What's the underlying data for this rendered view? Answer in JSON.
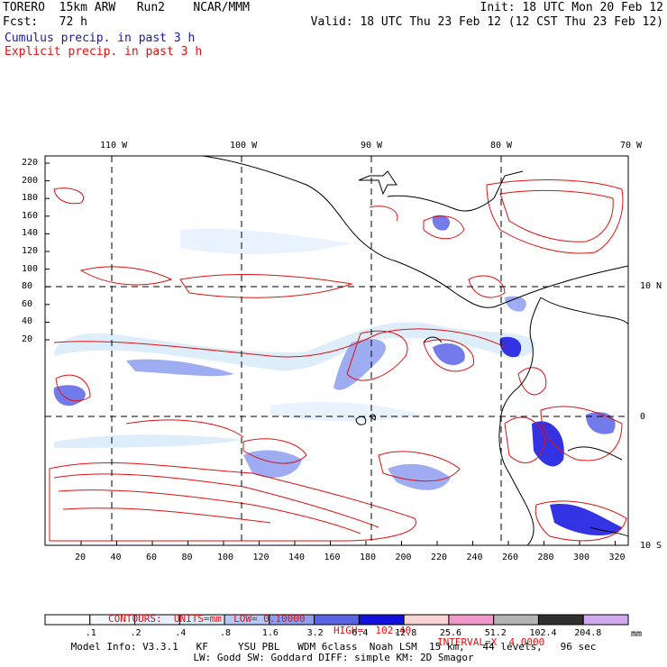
{
  "header": {
    "left_line1": "TORERO  15km ARW   Run2    NCAR/MMM",
    "left_line2": "Fcst:   72 h",
    "right_line1": "Init: 18 UTC Mon 20 Feb 12",
    "right_line2": "Valid: 18 UTC Thu 23 Feb 12 (12 CST Thu 23 Feb 12)",
    "legend_cumulus": "Cumulus precip. in past 3 h",
    "legend_explicit": "Explicit precip. in past 3 h"
  },
  "map": {
    "top_lon_labels": [
      "110 W",
      "100 W",
      "90 W",
      "80 W",
      "70 W"
    ],
    "right_lat_labels": [
      "10 N",
      "0",
      "10 S"
    ],
    "left_ticks": [
      "220",
      "200",
      "180",
      "160",
      "140",
      "120",
      "100",
      "80",
      "60",
      "40",
      "20"
    ],
    "bottom_ticks": [
      "20",
      "40",
      "60",
      "80",
      "100",
      "120",
      "140",
      "160",
      "180",
      "200",
      "220",
      "240",
      "260",
      "280",
      "300",
      "320"
    ],
    "colors": {
      "cumulus": "#1a1aa0",
      "explicit": "#e01010",
      "grid": "#000000"
    }
  },
  "contour_info": {
    "contours_label": "CONTOURS:  UNITS=mm  LOW= 0.10000",
    "high_label": "HIGH=  102.40",
    "interval_label": "INTERVAL=X  4.0000"
  },
  "colorbar": {
    "labels": [
      ".1",
      ".2",
      ".4",
      ".8",
      "1.6",
      "3.2",
      "6.4",
      "12.8",
      "25.6",
      "51.2",
      "102.4",
      "204.8"
    ],
    "unit": "mm",
    "colors": [
      "#ffffff",
      "#f4f8ff",
      "#e6f0ff",
      "#d8ecfa",
      "#b7c9f2",
      "#8e9ef0",
      "#5a64e6",
      "#1010e0",
      "#f8d4d4",
      "#f099c8",
      "#b4b4b4",
      "#303030",
      "#d2a8f0"
    ]
  },
  "footer": {
    "line1": "Model Info: V3.3.1   KF     YSU PBL   WDM 6class  Noah LSM  15 km,   44 levels,   96 sec",
    "line2": "LW: Godd SW: Goddard DIFF: simple KM: 2D Smagor"
  }
}
